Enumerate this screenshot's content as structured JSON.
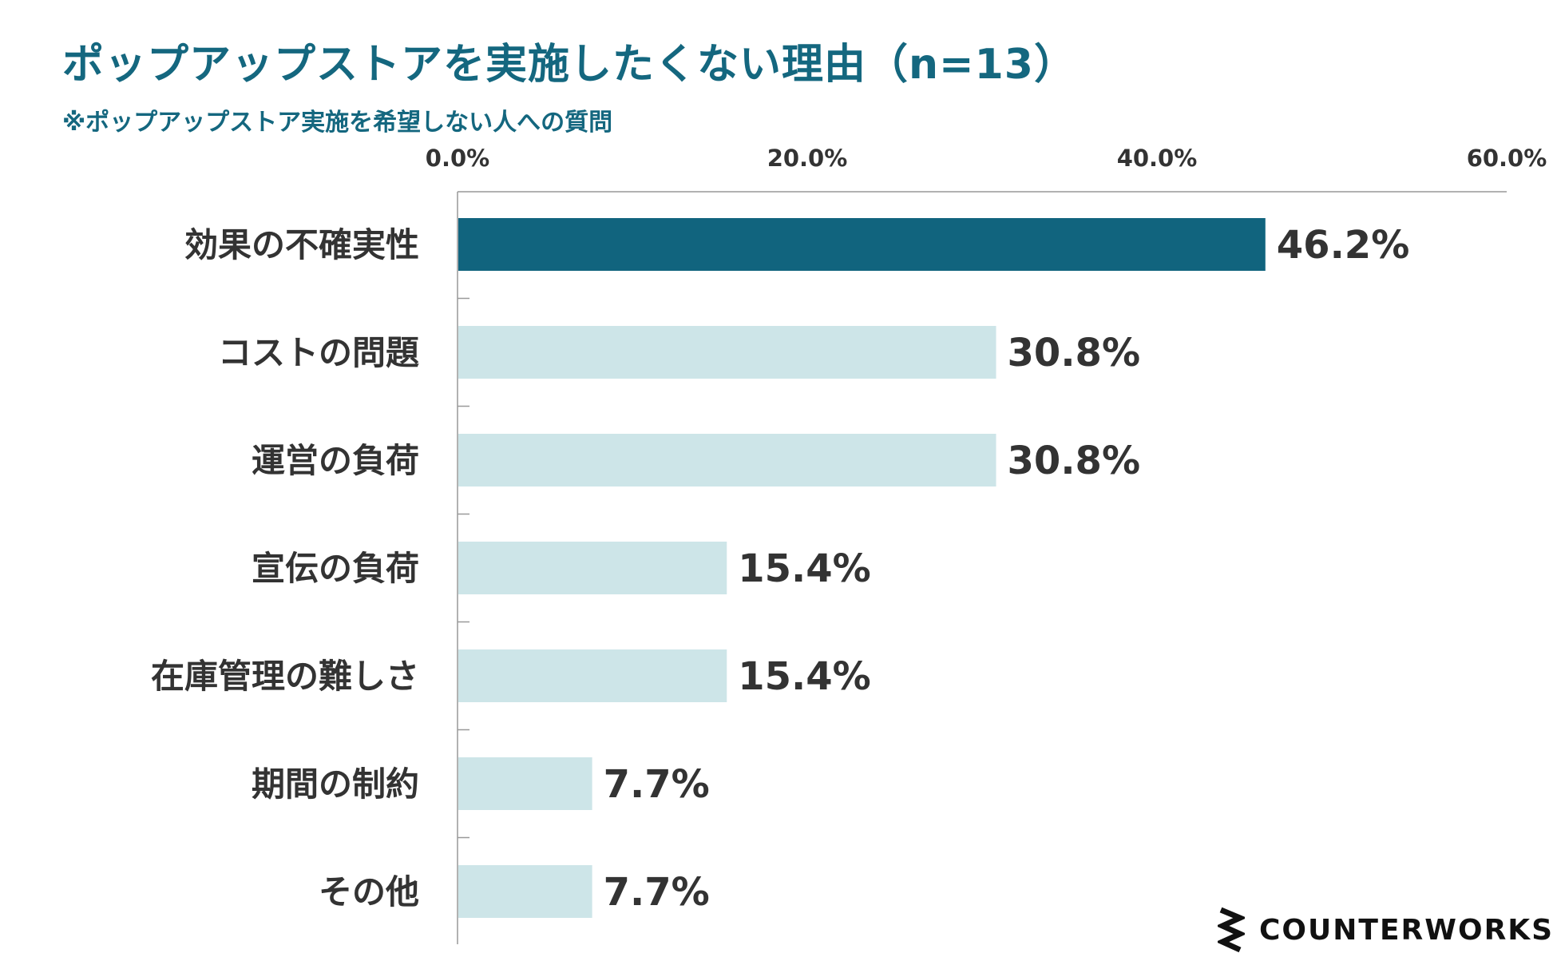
{
  "header": {
    "title": "ポップアップストアを実施したくない理由（n=13）",
    "subtitle": "※ポップアップストア実施を希望しない人への質問"
  },
  "logo": {
    "text": "COUNTERWORKS"
  },
  "colors": {
    "highlight": "#11647e",
    "bar": "#cde5e8",
    "text": "#333333",
    "axis": "#999999",
    "title": "#14677f"
  },
  "chart_data": {
    "type": "bar",
    "orientation": "horizontal",
    "title": "ポップアップストアを実施したくない理由（n=13）",
    "subtitle": "※ポップアップストア実施を希望しない人への質問",
    "categories": [
      "効果の不確実性",
      "コストの問題",
      "運営の負荷",
      "宣伝の負荷",
      "在庫管理の難しさ",
      "期間の制約",
      "その他"
    ],
    "values": [
      46.2,
      30.8,
      30.8,
      15.4,
      15.4,
      7.7,
      7.7
    ],
    "value_labels": [
      "46.2%",
      "30.8%",
      "30.8%",
      "15.4%",
      "15.4%",
      "7.7%",
      "7.7%"
    ],
    "xlim": [
      0,
      60
    ],
    "ticks": [
      0,
      20,
      40,
      60
    ],
    "tick_labels": [
      "0.0%",
      "20.0%",
      "40.0%",
      "60.0%"
    ],
    "axis_position": "top",
    "highlight_index": 0,
    "grid": false,
    "legend": "none"
  }
}
